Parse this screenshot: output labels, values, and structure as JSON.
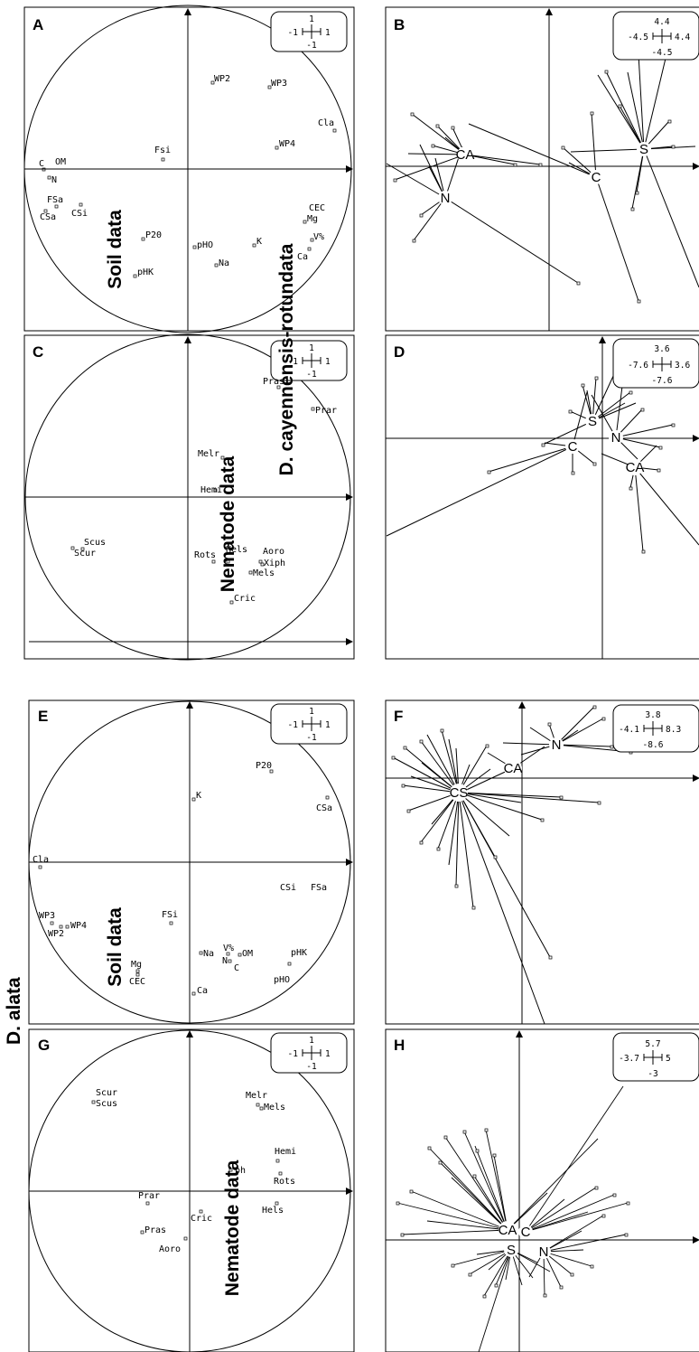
{
  "side_labels": {
    "top": "D. cayennensis-rotundata",
    "bottom": "D. alata"
  },
  "center_labels": {
    "A": "Soil data",
    "C": "Nematode data",
    "E": "Soil data",
    "G": "Nematode data"
  },
  "panels": {
    "A": {
      "letter": "A",
      "scale": [
        "1",
        "-1",
        "1",
        "-1"
      ],
      "variables": [
        "WP2",
        "WP3",
        "Cla",
        "WP4",
        "Fsi",
        "OM",
        "C",
        "N",
        "FSa",
        "CSi",
        "CSa",
        "CEC",
        "Mg",
        "V%",
        "Ca",
        "K",
        "pHO",
        "Na",
        "P20",
        "pHK"
      ]
    },
    "B": {
      "letter": "B",
      "scale": [
        "4.4",
        "-4.5",
        "4.4",
        "-4.5"
      ],
      "groups": [
        "CA",
        "N",
        "C",
        "S"
      ]
    },
    "C": {
      "letter": "C",
      "scale": [
        "1",
        "-1",
        "1",
        "-1"
      ],
      "variables": [
        "Pras",
        "Prar",
        "Melr",
        "Hemi",
        "Scus",
        "Scur",
        "Rots",
        "Hels",
        "Aoro",
        "Xiph",
        "Mels",
        "Cric"
      ]
    },
    "D": {
      "letter": "D",
      "scale": [
        "3.6",
        "-7.6",
        "3.6",
        "-7.6"
      ],
      "groups": [
        "S",
        "N",
        "C",
        "CA"
      ]
    },
    "E": {
      "letter": "E",
      "scale": [
        "1",
        "-1",
        "1",
        "-1"
      ],
      "variables": [
        "P20",
        "K",
        "CSa",
        "Cla",
        "CSi",
        "FSa",
        "WP3",
        "WP4",
        "WP2",
        "FSi",
        "Mg",
        "CEC",
        "Na",
        "V%",
        "OM",
        "N",
        "C",
        "pHK",
        "pHO",
        "Ca"
      ]
    },
    "F": {
      "letter": "F",
      "scale": [
        "3.8",
        "-4.1",
        "8.3",
        "-8.6"
      ],
      "groups": [
        "N",
        "CA",
        "CS"
      ]
    },
    "G": {
      "letter": "G",
      "scale": [
        "1",
        "-1",
        "1",
        "-1"
      ],
      "variables": [
        "Scur",
        "Scus",
        "Melr",
        "Mels",
        "Hemi",
        "ph",
        "Rots",
        "Prar",
        "Cric",
        "Hels",
        "Pras",
        "Aoro"
      ]
    },
    "H": {
      "letter": "H",
      "scale": [
        "5.7",
        "-3.7",
        "5",
        "-3"
      ],
      "groups": [
        "CA",
        "C",
        "S",
        "N"
      ]
    }
  }
}
